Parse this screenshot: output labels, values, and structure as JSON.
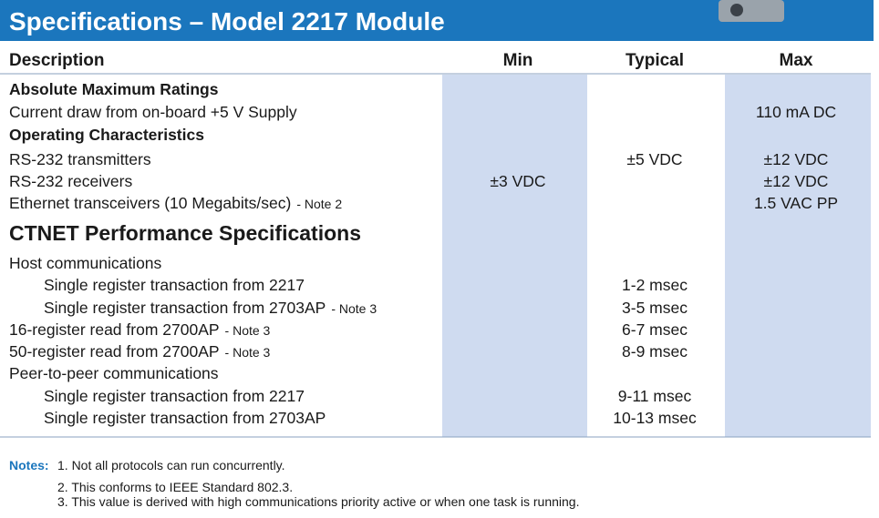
{
  "header": {
    "title": "Specifications – Model 2217 Module"
  },
  "table": {
    "columns": [
      "Description",
      "Min",
      "Typical",
      "Max"
    ],
    "sections": [
      {
        "rows": [
          {
            "description": "Absolute Maximum Ratings"
          },
          {
            "description": "Current draw from on-board +5 V Supply",
            "max": "110 mA DC"
          },
          {
            "description": "Operating Characteristics"
          },
          {
            "description": "RS-232 transmitters",
            "typical": "±5 VDC",
            "max": "±12 VDC"
          },
          {
            "description": "RS-232 receivers",
            "min": "±3 VDC",
            "max": "±12 VDC"
          },
          {
            "description": "Ethernet transceivers (10 Megabits/sec)",
            "note": "- Note 2",
            "max": "1.5 VAC PP"
          }
        ]
      },
      {
        "title": "CTNET Performance Specifications",
        "rows": [
          {
            "description": "Host communications"
          },
          {
            "description": "Single register transaction from 2217",
            "typical": "1-2 msec"
          },
          {
            "description": "Single register transaction from 2703AP",
            "note": "- Note 3",
            "typical": "3-5 msec"
          },
          {
            "description": "16-register read from 2700AP",
            "note": "- Note 3",
            "typical": "6-7 msec"
          },
          {
            "description": "50-register read from 2700AP",
            "note": "- Note 3",
            "typical": "8-9 msec"
          },
          {
            "description": "Peer-to-peer communications"
          },
          {
            "description": "Single register transaction from 2217",
            "typical": "9-11 msec"
          },
          {
            "description": "Single register transaction from 2703AP",
            "typical": "10-13 msec"
          }
        ]
      }
    ]
  },
  "notes": {
    "label": "Notes:",
    "items": [
      "1. Not all protocols can run concurrently.",
      "2. This conforms to IEEE Standard 802.3.",
      "3. This value is derived with high communications priority active or when one task is running."
    ]
  }
}
